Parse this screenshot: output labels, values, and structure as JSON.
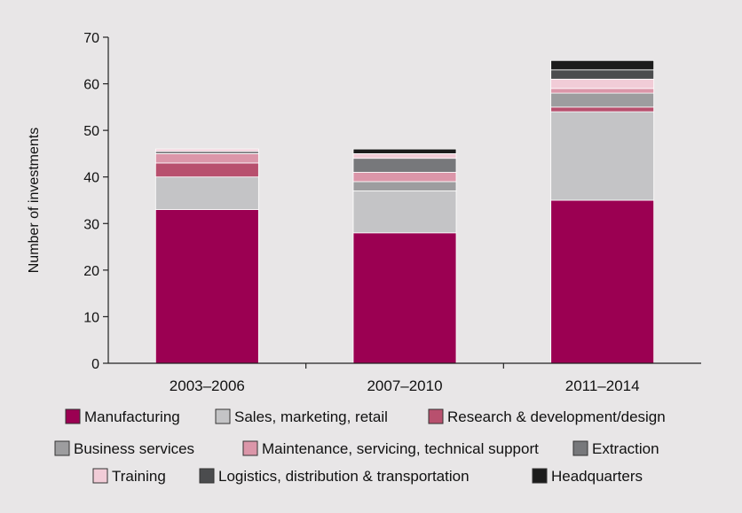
{
  "chart_data": {
    "type": "bar",
    "stacked": true,
    "title": "",
    "xlabel": "",
    "ylabel": "Number of investments",
    "ylim": [
      0,
      70
    ],
    "yticks": [
      0,
      10,
      20,
      30,
      40,
      50,
      60,
      70
    ],
    "grid": false,
    "legend_position": "bottom",
    "categories": [
      "2003–2006",
      "2007–2010",
      "2011–2014"
    ],
    "series": [
      {
        "name": "Manufacturing",
        "color": "#9b0052",
        "values": [
          33,
          28,
          35
        ]
      },
      {
        "name": "Sales, marketing, retail",
        "color": "#c4c4c6",
        "values": [
          7,
          9,
          19
        ]
      },
      {
        "name": "Research & development/design",
        "color": "#b8506e",
        "values": [
          3,
          0,
          1
        ]
      },
      {
        "name": "Business services",
        "color": "#9d9d9f",
        "values": [
          0,
          2,
          3
        ]
      },
      {
        "name": "Maintenance, servicing, technical support",
        "color": "#db96a9",
        "values": [
          2,
          2,
          1
        ]
      },
      {
        "name": "Extraction",
        "color": "#77787b",
        "values": [
          0.5,
          3,
          0
        ]
      },
      {
        "name": "Training",
        "color": "#f1ccd7",
        "values": [
          0.5,
          1,
          2
        ]
      },
      {
        "name": "Logistics, distribution & transportation",
        "color": "#4b4c4e",
        "values": [
          0,
          0,
          2
        ]
      },
      {
        "name": "Headquarters",
        "color": "#1c1c1c",
        "values": [
          0,
          1,
          2
        ]
      }
    ]
  }
}
